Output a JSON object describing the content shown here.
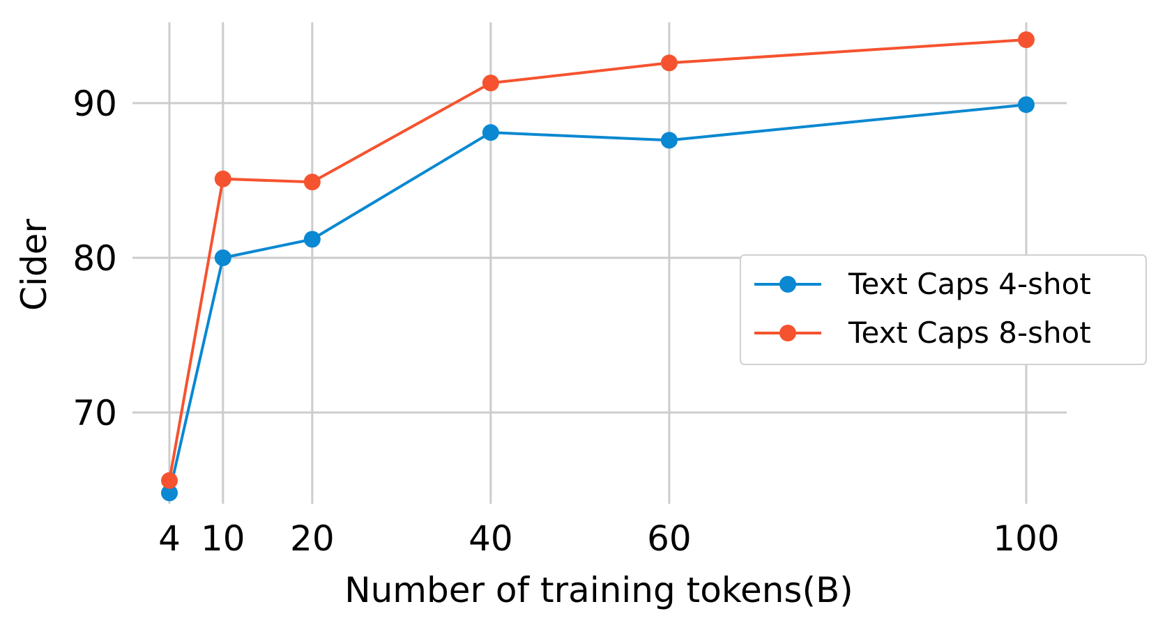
{
  "chart_data": {
    "type": "line",
    "xlabel": "Number of training tokens(B)",
    "ylabel": "Cider",
    "x": [
      4,
      10,
      20,
      40,
      60,
      100
    ],
    "x_ticks": [
      "4",
      "10",
      "20",
      "40",
      "60",
      "100"
    ],
    "y_ticks": [
      "70",
      "80",
      "90"
    ],
    "ylim": [
      64,
      95.5
    ],
    "xlim": [
      3,
      104.5
    ],
    "grid": true,
    "legend_position": "right",
    "series": [
      {
        "name": "Text Caps 4-shot",
        "color": "#0a88d1",
        "values": [
          64.8,
          80.0,
          81.2,
          88.1,
          87.6,
          89.9
        ]
      },
      {
        "name": "Text Caps 8-shot",
        "color": "#f5532f",
        "values": [
          65.6,
          85.1,
          84.9,
          91.3,
          92.6,
          94.1
        ]
      }
    ]
  }
}
